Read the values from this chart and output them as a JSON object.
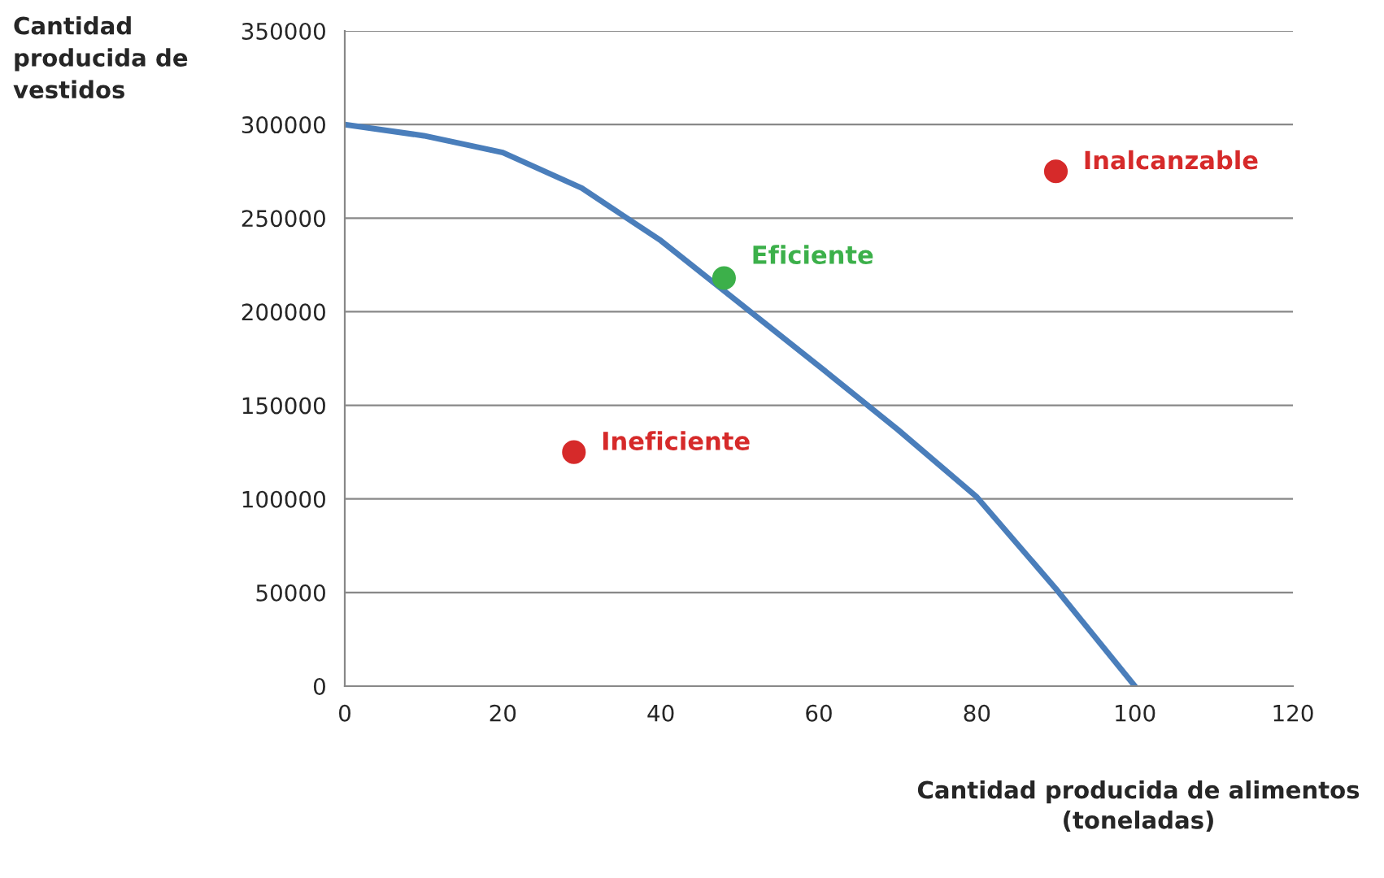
{
  "chart_data": {
    "type": "line",
    "xlabel": "Cantidad producida de alimentos\n(toneladas)",
    "ylabel": "Cantidad\nproducida de\nvestidos",
    "xlim": [
      0,
      120
    ],
    "xticks": [
      0,
      20,
      40,
      60,
      80,
      100,
      120
    ],
    "ylim": [
      0,
      350000
    ],
    "yticks": [
      0,
      50000,
      100000,
      150000,
      200000,
      250000,
      300000,
      350000
    ],
    "grid": "y",
    "legend": false,
    "series": [
      {
        "color": "#4a7ebb",
        "x": [
          0,
          10,
          20,
          30,
          40,
          60,
          70,
          80,
          90,
          100
        ],
        "values": [
          300000,
          294000,
          285000,
          266000,
          238000,
          171000,
          137000,
          101000,
          52000,
          0
        ]
      },
      {
        "type": "scatter",
        "name": "Eficiente",
        "color": "#3cb04a",
        "x": [
          48
        ],
        "values": [
          218000
        ]
      },
      {
        "type": "scatter",
        "name": "Ineficiente",
        "color": "#d62a2a",
        "x": [
          29
        ],
        "values": [
          125000
        ]
      },
      {
        "type": "scatter",
        "name": "Inalcanzable",
        "color": "#d62a2a",
        "x": [
          90
        ],
        "values": [
          275000
        ]
      }
    ]
  }
}
